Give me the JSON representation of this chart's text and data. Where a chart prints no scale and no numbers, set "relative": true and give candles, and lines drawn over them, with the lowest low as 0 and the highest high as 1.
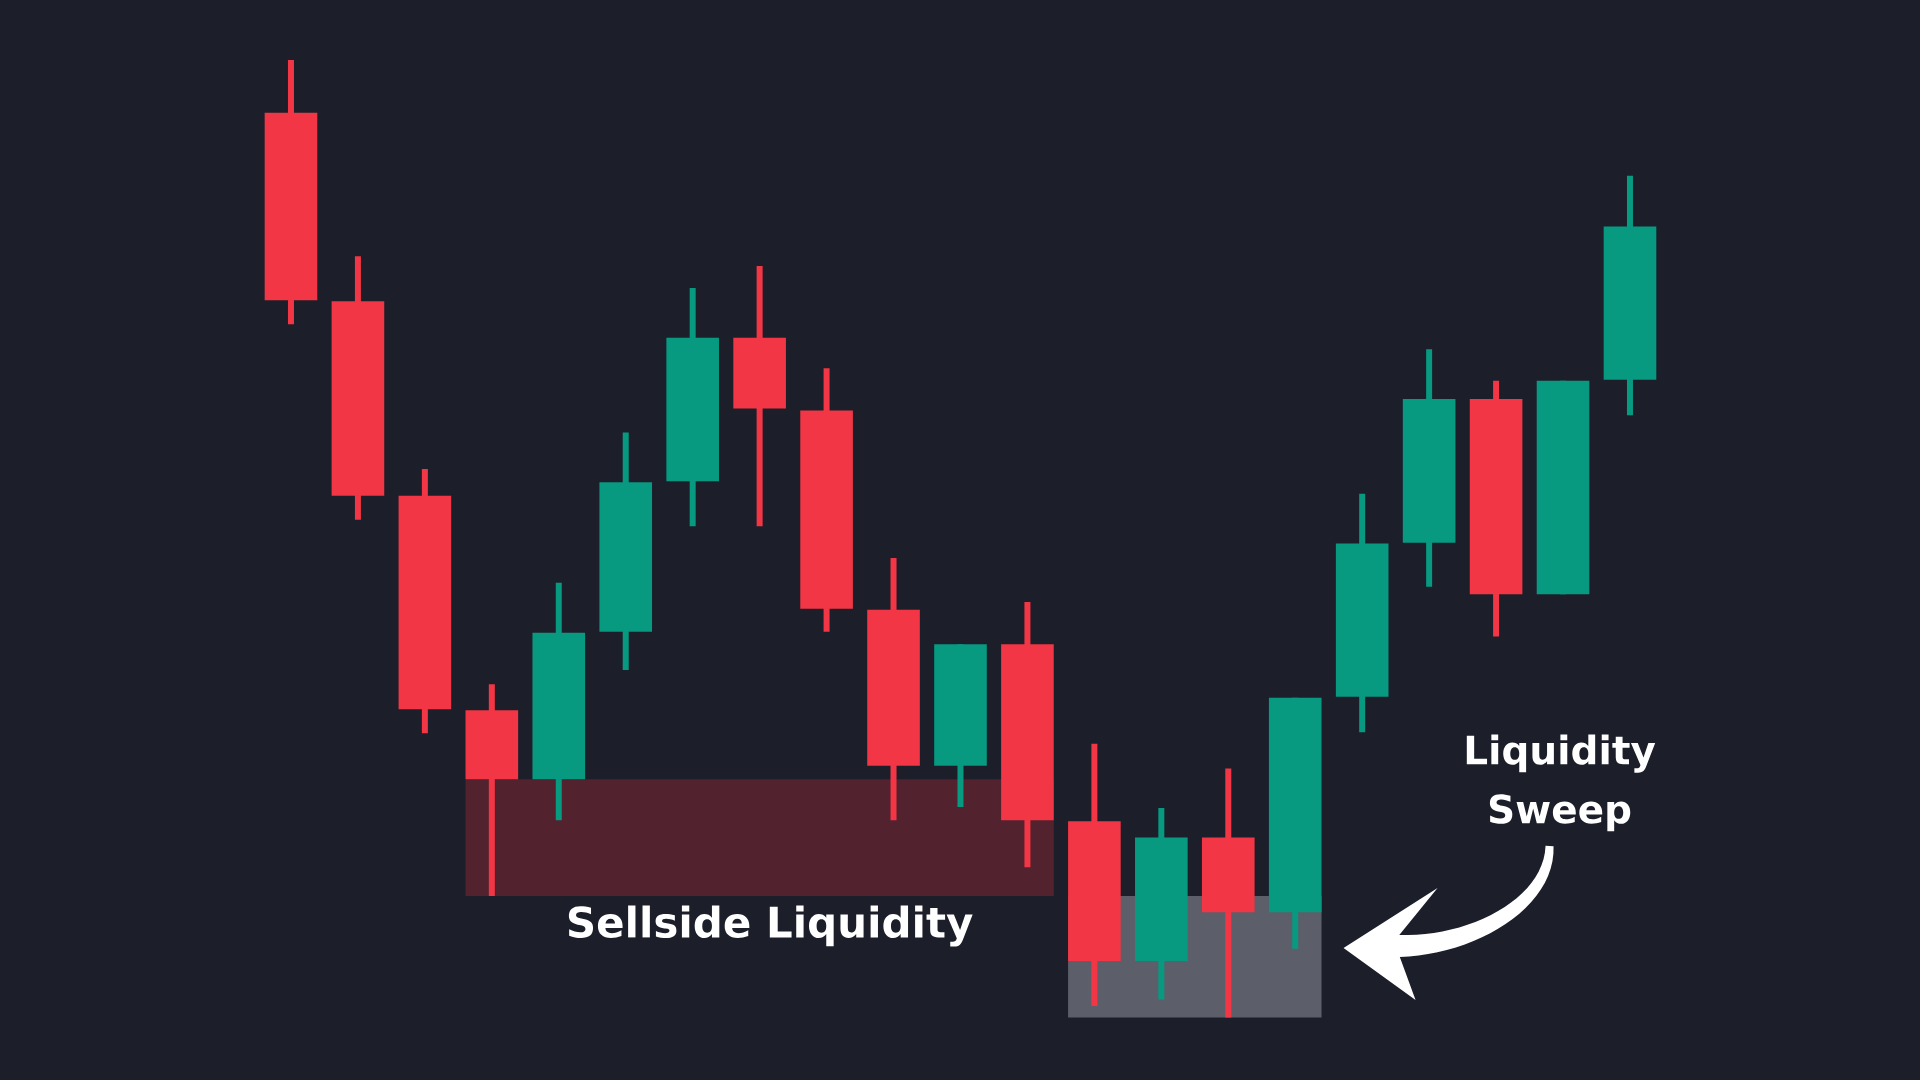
{
  "chart_data": {
    "type": "candlestick",
    "relative": true,
    "categories": [
      null,
      null,
      null,
      null,
      null,
      null,
      null,
      null,
      null,
      null,
      null,
      null,
      null,
      null,
      null,
      null,
      null,
      null,
      null,
      null,
      null
    ],
    "ohlc": [
      [
        0.945,
        1.0,
        0.724,
        0.749
      ],
      [
        0.748,
        0.795,
        0.52,
        0.545
      ],
      [
        0.545,
        0.573,
        0.297,
        0.322
      ],
      [
        0.321,
        0.348,
        0.127,
        0.249
      ],
      [
        0.249,
        0.454,
        0.206,
        0.402
      ],
      [
        0.403,
        0.611,
        0.363,
        0.559
      ],
      [
        0.56,
        0.762,
        0.513,
        0.71
      ],
      [
        0.71,
        0.785,
        0.513,
        0.636
      ],
      [
        0.634,
        0.678,
        0.403,
        0.427
      ],
      [
        0.426,
        0.48,
        0.206,
        0.263
      ],
      [
        0.263,
        0.39,
        0.22,
        0.39
      ],
      [
        0.39,
        0.434,
        0.157,
        0.206
      ],
      [
        0.205,
        0.286,
        0.012,
        0.059
      ],
      [
        0.059,
        0.219,
        0.019,
        0.188
      ],
      [
        0.188,
        0.26,
        0,
        0.11
      ],
      [
        0.11,
        0.334,
        0.072,
        0.334
      ],
      [
        0.335,
        0.547,
        0.298,
        0.495
      ],
      [
        0.496,
        0.698,
        0.45,
        0.646
      ],
      [
        0.646,
        0.665,
        0.398,
        0.442
      ],
      [
        0.442,
        0.665,
        0.442,
        0.665
      ],
      [
        0.666,
        0.879,
        0.629,
        0.826
      ]
    ],
    "colors": [
      "#f23645",
      "#f23645",
      "#f23645",
      "#f23645",
      "#089981",
      "#089981",
      "#089981",
      "#f23645",
      "#f23645",
      "#f23645",
      "#089981",
      "#f23645",
      "#f23645",
      "#089981",
      "#f23645",
      "#089981",
      "#089981",
      "#089981",
      "#f23645",
      "#089981",
      "#089981"
    ],
    "bands": [
      {
        "axis": "y",
        "from": 0.127,
        "to": 0.249,
        "color": "#52222f",
        "label": "Sellside Liquidity"
      },
      {
        "axis": "y",
        "from": 0,
        "to": 0.127,
        "color": "#5c5f69"
      }
    ],
    "annotations": [
      "Liquidity Sweep"
    ]
  }
}
